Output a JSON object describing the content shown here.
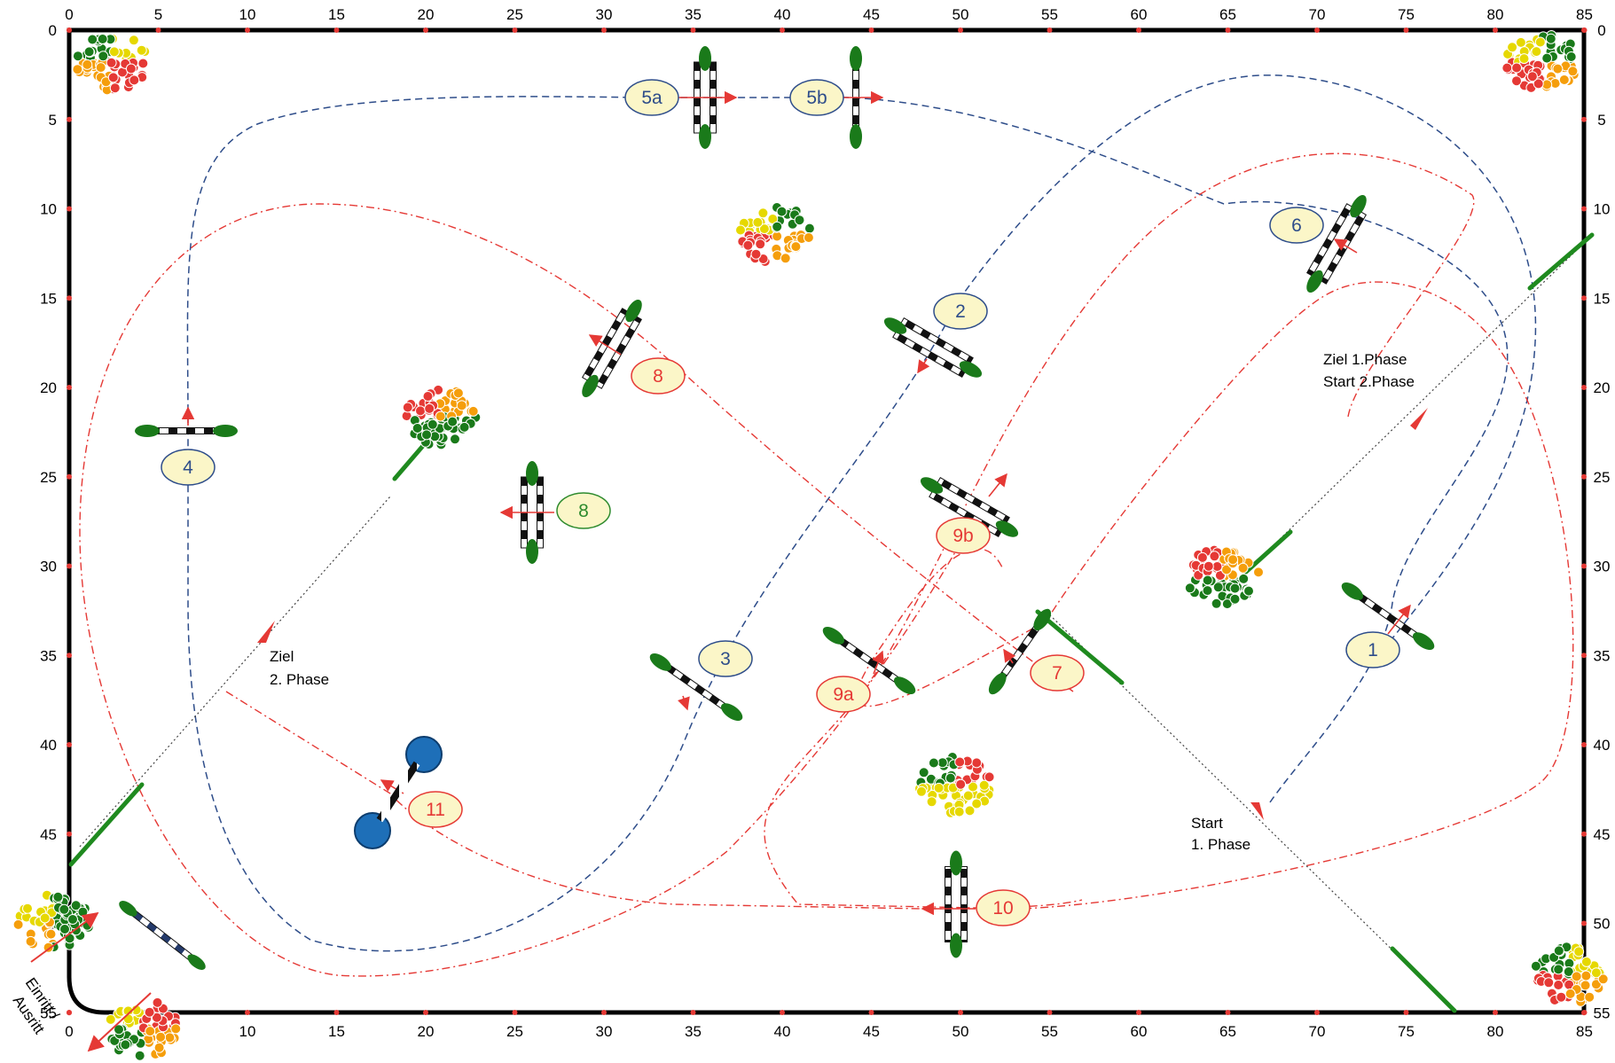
{
  "ruler": {
    "top": [
      "0",
      "5",
      "10",
      "15",
      "20",
      "25",
      "30",
      "35",
      "40",
      "45",
      "50",
      "55",
      "60",
      "65",
      "70",
      "75",
      "80",
      "85"
    ],
    "side": [
      "0",
      "5",
      "10",
      "15",
      "20",
      "25",
      "30",
      "35",
      "40",
      "45",
      "50",
      "55"
    ]
  },
  "labels": {
    "1": "1",
    "2": "2",
    "3": "3",
    "4": "4",
    "5a": "5a",
    "5b": "5b",
    "6": "6",
    "7": "7",
    "8_red": "8",
    "8_green": "8",
    "9a": "9a",
    "9b": "9b",
    "10": "10",
    "11": "11"
  },
  "text": {
    "start1_l1": "Start",
    "start1_l2": "1. Phase",
    "ziel1_l1": "Ziel   1.Phase",
    "ziel1_l2": "Start 2.Phase",
    "ziel2_l1": "Ziel",
    "ziel2_l2": "2. Phase",
    "entrance_l1": "Einritt /",
    "entrance_l2": "Ausritt"
  },
  "colors": {
    "phase1": "#2e4d8a",
    "phase2": "#e53935",
    "green_label": "#2e8b2e",
    "label_fill": "#fbf6c8",
    "bush": "#1a7a1a",
    "water_tray": "#1e6fb8"
  }
}
